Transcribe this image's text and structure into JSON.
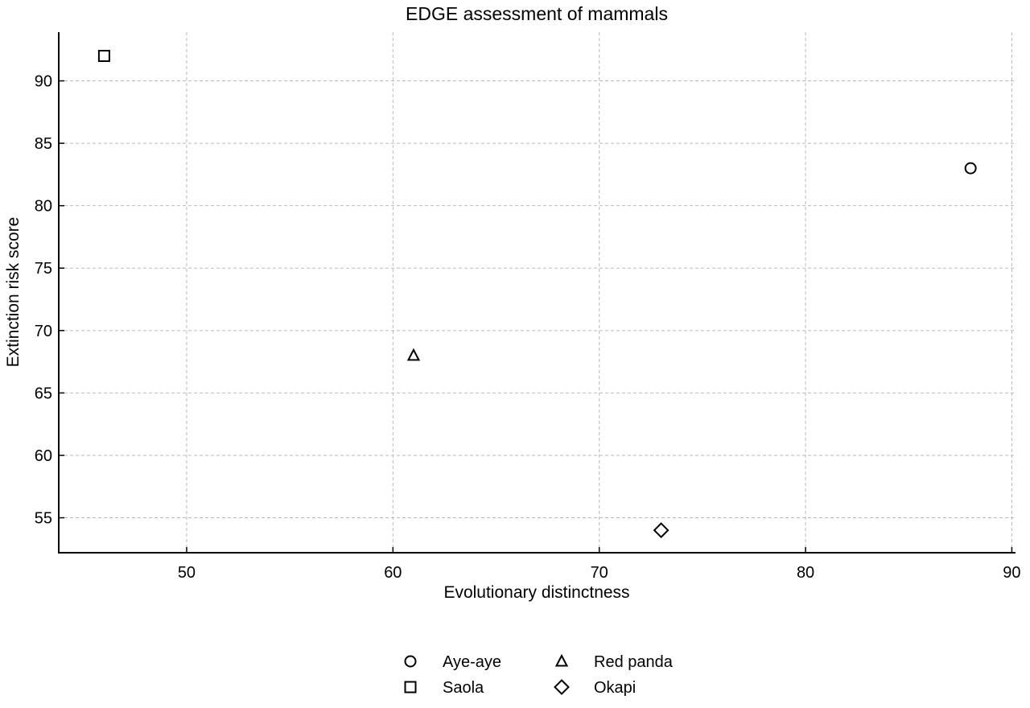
{
  "chart_data": {
    "type": "scatter",
    "title": "EDGE assessment of mammals",
    "xlabel": "Evolutionary distinctness",
    "ylabel": "Extinction risk score",
    "xlim": [
      43.8,
      90.1
    ],
    "ylim": [
      52.2,
      93.9
    ],
    "xticks": [
      50,
      60,
      70,
      80,
      90
    ],
    "yticks": [
      55,
      60,
      65,
      70,
      75,
      80,
      85,
      90
    ],
    "grid": true,
    "legend_position": "bottom-center",
    "series": [
      {
        "name": "Aye-aye",
        "marker": "circle",
        "x": 88,
        "y": 83
      },
      {
        "name": "Saola",
        "marker": "square",
        "x": 46,
        "y": 92
      },
      {
        "name": "Red panda",
        "marker": "triangle",
        "x": 61,
        "y": 68
      },
      {
        "name": "Okapi",
        "marker": "diamond",
        "x": 73,
        "y": 54
      }
    ],
    "colors": {
      "marker": "#000000",
      "grid": "#b9b9b9",
      "axis": "#000000"
    }
  }
}
